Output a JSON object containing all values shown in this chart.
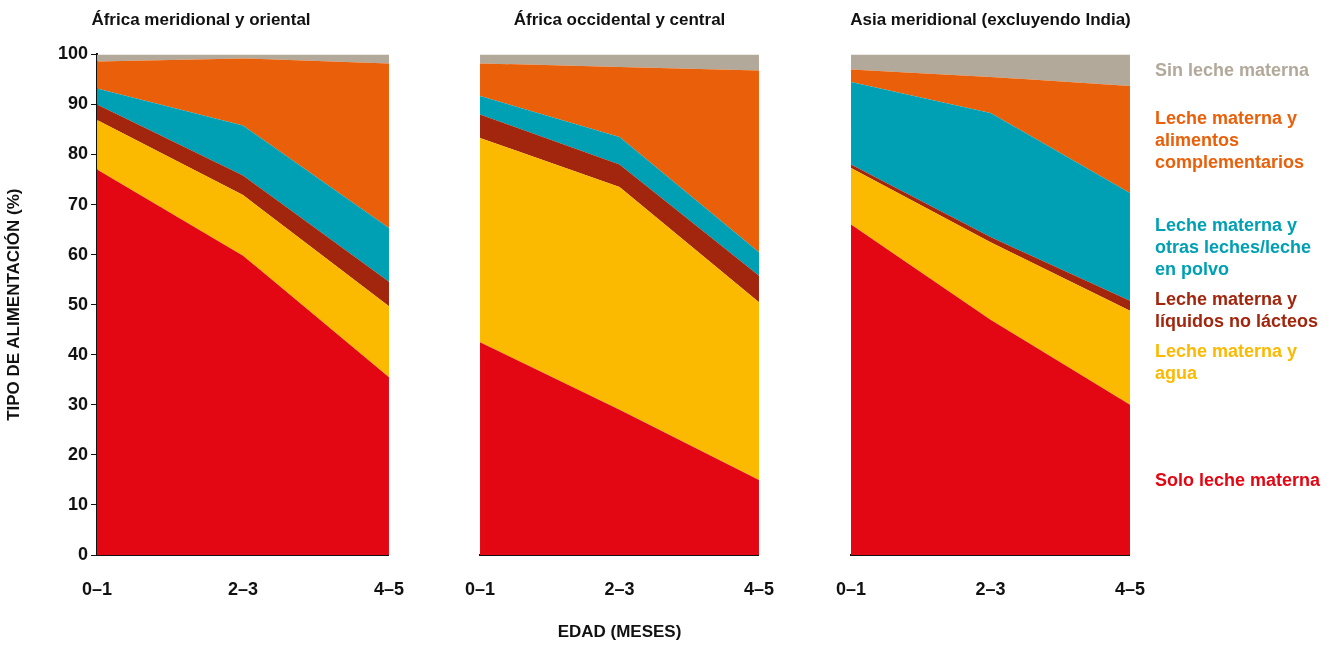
{
  "chart_data": [
    {
      "type": "area",
      "title": "África meridional y oriental",
      "ylabel": "TIPO DE ALIMENTACIÓN (%)",
      "categories": [
        "0–1",
        "2–3",
        "4–5"
      ],
      "stacked": true,
      "ylim": [
        0,
        100
      ],
      "yticks": [
        0,
        10,
        20,
        30,
        40,
        50,
        60,
        70,
        80,
        90,
        100
      ],
      "grid": false,
      "legend": false,
      "series": [
        {
          "color": "#e30613",
          "values": [
            77,
            59.8,
            35.5
          ]
        },
        {
          "color": "#fbb900",
          "values": [
            9.9,
            12.1,
            14.2
          ]
        },
        {
          "color": "#a1260d",
          "values": [
            3.1,
            3.9,
            4.9
          ]
        },
        {
          "color": "#00a0b4",
          "values": [
            3.2,
            10,
            10.7
          ]
        },
        {
          "color": "#ea600a",
          "values": [
            5.4,
            13.4,
            32.9
          ]
        },
        {
          "color": "#b3a99b",
          "values": [
            1.4,
            0.8,
            1.8
          ]
        }
      ]
    },
    {
      "type": "area",
      "title": "África occidental y central",
      "xlabel": "EDAD (MESES)",
      "categories": [
        "0–1",
        "2–3",
        "4–5"
      ],
      "stacked": true,
      "ylim": [
        0,
        100
      ],
      "yticks": [
        0,
        10,
        20,
        30,
        40,
        50,
        60,
        70,
        80,
        90,
        100
      ],
      "tick_labels": "x",
      "grid": false,
      "legend": false,
      "series": [
        {
          "color": "#e30613",
          "values": [
            42.5,
            29,
            15
          ]
        },
        {
          "color": "#fbb900",
          "values": [
            40.8,
            44.5,
            35.5
          ]
        },
        {
          "color": "#a1260d",
          "values": [
            4.7,
            4.5,
            5.3
          ]
        },
        {
          "color": "#00a0b4",
          "values": [
            3.7,
            5.5,
            4.7
          ]
        },
        {
          "color": "#ea600a",
          "values": [
            6.5,
            14,
            36.3
          ]
        },
        {
          "color": "#b3a99b",
          "values": [
            1.8,
            2.5,
            3.2
          ]
        }
      ]
    },
    {
      "type": "area",
      "title": "Asia meridional (excluyendo India)",
      "categories": [
        "0–1",
        "2–3",
        "4–5"
      ],
      "stacked": true,
      "ylim": [
        0,
        100
      ],
      "yticks": [
        0,
        10,
        20,
        30,
        40,
        50,
        60,
        70,
        80,
        90,
        100
      ],
      "tick_labels": "x",
      "grid": false,
      "legend": "right",
      "series": [
        {
          "name": "Solo leche materna",
          "color": "#e30613",
          "values": [
            66,
            47,
            30
          ]
        },
        {
          "name": "Leche materna y agua",
          "color": "#fbb900",
          "values": [
            11.3,
            15.5,
            18.8
          ]
        },
        {
          "name": "Leche materna y líquidos no lácteos",
          "color": "#a1260d",
          "values": [
            0.7,
            1,
            2
          ]
        },
        {
          "name": "Leche materna y otras leches/leche en polvo",
          "color": "#00a0b4",
          "values": [
            16.5,
            24.8,
            21.5
          ]
        },
        {
          "name": "Leche materna y alimentos complementarios",
          "color": "#ea600a",
          "values": [
            2.5,
            7.2,
            21.4
          ]
        },
        {
          "name": "Sin leche materna",
          "color": "#b3a99b",
          "values": [
            3,
            4.5,
            6.3
          ]
        }
      ]
    }
  ]
}
